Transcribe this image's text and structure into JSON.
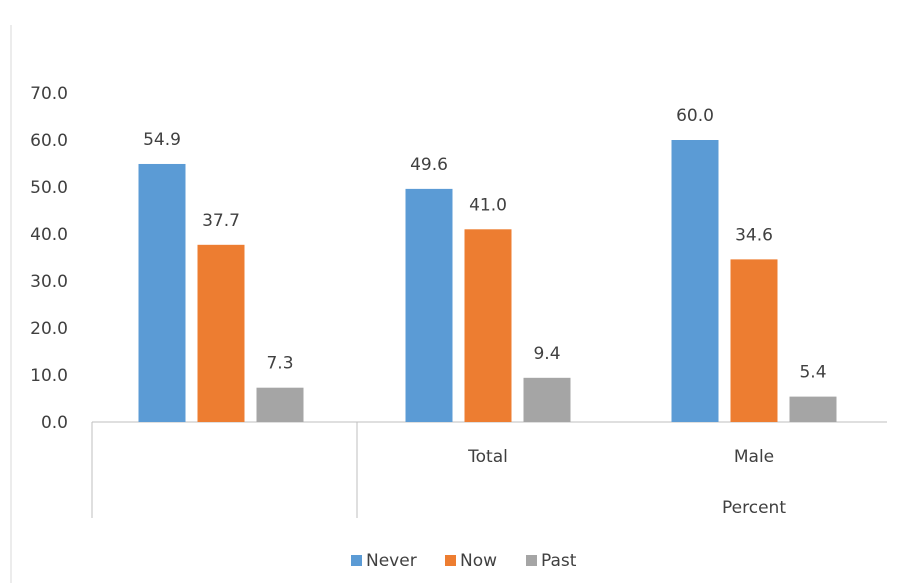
{
  "chart_data": {
    "type": "bar",
    "categories": [
      "",
      "Total",
      "Male"
    ],
    "group_label": "Percent",
    "series": [
      {
        "name": "Never",
        "color": "#5B9BD5",
        "values": [
          54.9,
          49.6,
          60.0
        ]
      },
      {
        "name": "Now",
        "color": "#ED7D31",
        "values": [
          37.7,
          41.0,
          34.6
        ]
      },
      {
        "name": "Past",
        "color": "#A5A5A5",
        "values": [
          7.3,
          9.4,
          5.4
        ]
      }
    ],
    "ylim": [
      0,
      70
    ],
    "yticks": [
      "0.0",
      "10.0",
      "20.0",
      "30.0",
      "40.0",
      "50.0",
      "60.0",
      "70.0"
    ],
    "data_labels": [
      [
        "54.9",
        "49.6",
        "60.0"
      ],
      [
        "37.7",
        "41.0",
        "34.6"
      ],
      [
        "7.3",
        "9.4",
        "5.4"
      ]
    ],
    "grid": false,
    "legend_position": "bottom"
  }
}
